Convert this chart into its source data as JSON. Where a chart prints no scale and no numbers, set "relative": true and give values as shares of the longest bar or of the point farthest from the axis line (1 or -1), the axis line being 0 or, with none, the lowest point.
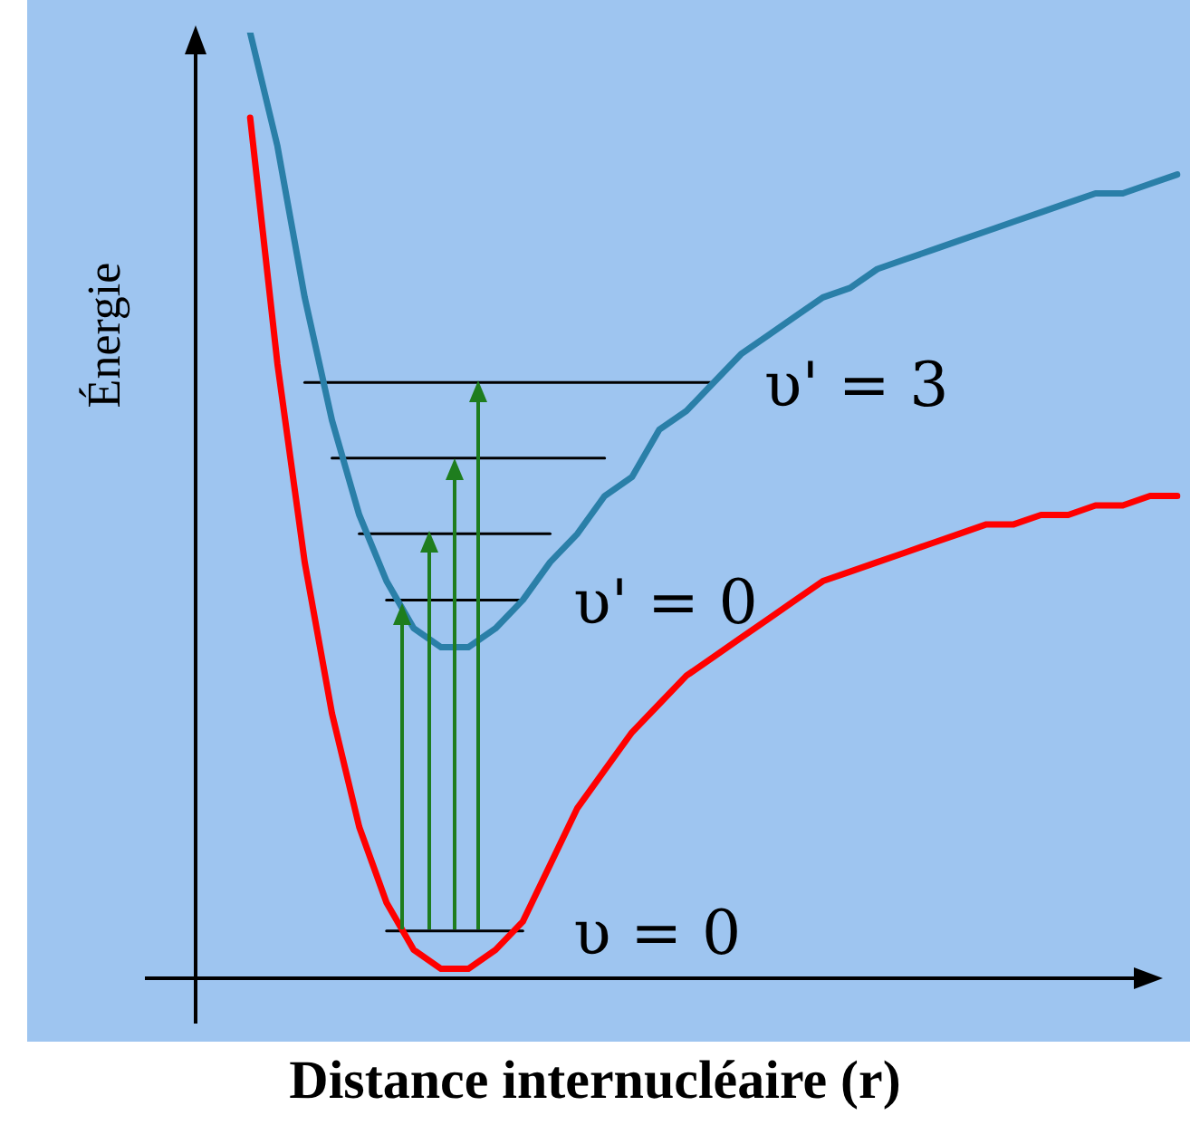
{
  "chart_data": {
    "type": "line",
    "relative": true,
    "xlabel": "Distance internucléaire (r)",
    "ylabel": "Énergie",
    "legend": false,
    "marker": "none",
    "line_style": "solid",
    "categories": [
      null,
      null,
      null,
      null,
      null,
      null,
      null,
      null,
      null,
      null,
      null,
      null,
      null,
      null,
      null,
      null,
      null,
      null,
      null,
      null,
      null,
      null,
      null,
      null,
      null,
      null,
      null,
      null,
      null,
      null,
      null,
      null,
      null,
      null,
      null,
      null,
      null
    ],
    "series": [
      {
        "color": "#ff0000",
        "values": [
          null,
          null,
          0.91,
          0.65,
          0.44,
          0.28,
          0.16,
          0.08,
          0.03,
          0.01,
          0.01,
          0.03,
          0.06,
          0.12,
          0.18,
          0.22,
          0.26,
          0.29,
          0.32,
          0.34,
          0.36,
          0.38,
          0.4,
          0.42,
          0.43,
          0.44,
          0.45,
          0.46,
          0.47,
          0.48,
          0.48,
          0.49,
          0.49,
          0.5,
          0.5,
          0.51,
          0.51
        ]
      },
      {
        "color": "#2a7fa8",
        "values": [
          null,
          null,
          1.0,
          0.88,
          0.72,
          0.59,
          0.49,
          0.42,
          0.37,
          0.35,
          0.35,
          0.37,
          0.4,
          0.44,
          0.47,
          0.51,
          0.53,
          0.58,
          0.6,
          0.63,
          0.66,
          0.68,
          0.7,
          0.72,
          0.73,
          0.75,
          0.76,
          0.77,
          0.78,
          0.79,
          0.8,
          0.81,
          0.82,
          0.83,
          0.83,
          0.84,
          0.85
        ]
      },
      {
        "name": "υ = 0",
        "color": "#000000",
        "values": [
          null,
          null,
          null,
          null,
          null,
          null,
          null,
          0.05,
          0.05,
          0.05,
          0.05,
          0.05,
          0.05,
          null,
          null,
          null,
          null,
          null,
          null,
          null,
          null,
          null,
          null,
          null,
          null,
          null,
          null,
          null,
          null,
          null,
          null,
          null,
          null,
          null,
          null,
          null,
          null
        ]
      },
      {
        "name": "υ' = 0",
        "color": "#000000",
        "values": [
          null,
          null,
          null,
          null,
          null,
          null,
          null,
          0.4,
          0.4,
          0.4,
          0.4,
          0.4,
          0.4,
          null,
          null,
          null,
          null,
          null,
          null,
          null,
          null,
          null,
          null,
          null,
          null,
          null,
          null,
          null,
          null,
          null,
          null,
          null,
          null,
          null,
          null,
          null,
          null
        ]
      },
      {
        "color": "#000000",
        "values": [
          null,
          null,
          null,
          null,
          null,
          null,
          0.47,
          0.47,
          0.47,
          0.47,
          0.47,
          0.47,
          0.47,
          0.47,
          null,
          null,
          null,
          null,
          null,
          null,
          null,
          null,
          null,
          null,
          null,
          null,
          null,
          null,
          null,
          null,
          null,
          null,
          null,
          null,
          null,
          null,
          null
        ]
      },
      {
        "color": "#000000",
        "values": [
          null,
          null,
          null,
          null,
          null,
          0.55,
          0.55,
          0.55,
          0.55,
          0.55,
          0.55,
          0.55,
          0.55,
          0.55,
          0.55,
          0.55,
          null,
          null,
          null,
          null,
          null,
          null,
          null,
          null,
          null,
          null,
          null,
          null,
          null,
          null,
          null,
          null,
          null,
          null,
          null,
          null,
          null
        ]
      },
      {
        "name": "υ' = 3",
        "color": "#000000",
        "values": [
          null,
          null,
          null,
          null,
          0.63,
          0.63,
          0.63,
          0.63,
          0.63,
          0.63,
          0.63,
          0.63,
          0.63,
          0.63,
          0.63,
          0.63,
          0.63,
          0.63,
          0.63,
          0.63,
          null,
          null,
          null,
          null,
          null,
          null,
          null,
          null,
          null,
          null,
          null,
          null,
          null,
          null,
          null,
          null,
          null
        ]
      }
    ]
  }
}
